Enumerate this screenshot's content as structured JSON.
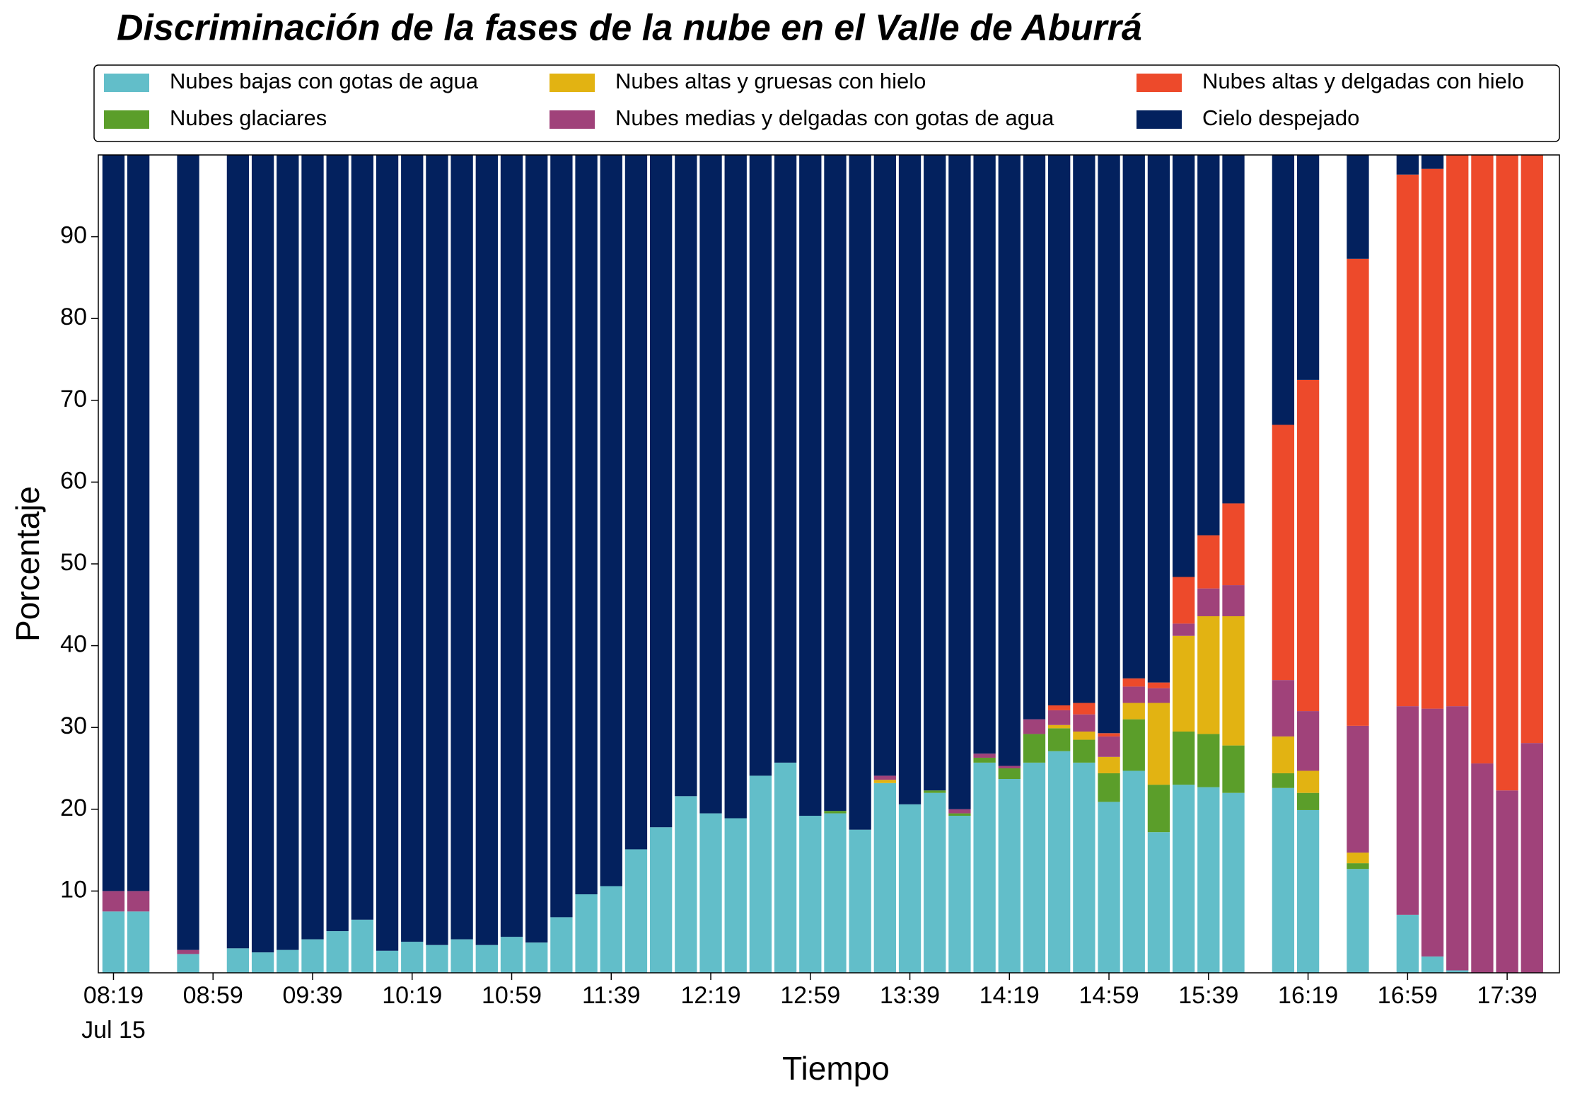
{
  "chart_data": {
    "type": "stacked_bar",
    "title": "Discriminación de la fases de la nube en el Valle de Aburrá",
    "xlabel": "Tiempo",
    "ylabel": "Porcentaje",
    "date_label": "Jul 15",
    "categories": [
      "08:19",
      null,
      null,
      null,
      "08:59",
      null,
      null,
      null,
      "09:39",
      null,
      null,
      null,
      "10:19",
      null,
      null,
      null,
      "10:59",
      null,
      null,
      null,
      "11:39",
      null,
      null,
      null,
      "12:19",
      null,
      null,
      null,
      "12:59",
      null,
      null,
      null,
      "13:39",
      null,
      null,
      null,
      "14:19",
      null,
      null,
      null,
      "14:59",
      null,
      null,
      null,
      "15:39",
      null,
      null,
      null,
      "16:19",
      null,
      null,
      null,
      "16:59",
      null,
      null,
      null,
      "17:39",
      null
    ],
    "ylim": [
      0,
      100
    ],
    "yticks": [
      10,
      20,
      30,
      40,
      50,
      60,
      70,
      80,
      90
    ],
    "legend": "top",
    "series": [
      {
        "name": "Nubes bajas con gotas de agua",
        "color": "#62bec9",
        "values": [
          7.5,
          7.5,
          null,
          2.3,
          null,
          3.0,
          2.5,
          2.8,
          4.1,
          5.1,
          6.5,
          2.7,
          3.8,
          3.4,
          4.1,
          3.4,
          4.4,
          3.7,
          6.8,
          9.6,
          10.6,
          15.1,
          17.8,
          21.6,
          19.5,
          18.9,
          24.1,
          25.7,
          19.2,
          19.5,
          17.5,
          23.2,
          20.6,
          22.0,
          19.2,
          25.7,
          23.7,
          25.7,
          27.1,
          25.7,
          20.9,
          24.7,
          17.2,
          23.0,
          22.7,
          22.0,
          null,
          22.6,
          19.9,
          null,
          12.7,
          null,
          7.1,
          2.0,
          0.3,
          0,
          0,
          0
        ]
      },
      {
        "name": "Nubes glaciares",
        "color": "#5b9e2a",
        "values": [
          0,
          0,
          null,
          0,
          null,
          0,
          0,
          0,
          0,
          0,
          0,
          0,
          0,
          0,
          0,
          0,
          0,
          0,
          0,
          0,
          0,
          0,
          0,
          0,
          0,
          0,
          0,
          0,
          0,
          0.3,
          0,
          0,
          0,
          0.3,
          0.3,
          0.6,
          1.3,
          3.5,
          2.8,
          2.8,
          3.5,
          6.3,
          5.8,
          6.5,
          6.5,
          5.8,
          null,
          1.8,
          2.1,
          null,
          0.7,
          null,
          0,
          0,
          0,
          0,
          0,
          0
        ]
      },
      {
        "name": "Nubes altas y gruesas con hielo",
        "color": "#e2b312",
        "values": [
          0,
          0,
          null,
          0,
          null,
          0,
          0,
          0,
          0,
          0,
          0,
          0,
          0,
          0,
          0,
          0,
          0,
          0,
          0,
          0,
          0,
          0,
          0,
          0,
          0,
          0,
          0,
          0,
          0,
          0,
          0,
          0.4,
          0,
          0,
          0,
          0,
          0,
          0,
          0.4,
          1.0,
          2.0,
          2.0,
          10.0,
          11.7,
          14.4,
          15.8,
          null,
          4.5,
          2.7,
          null,
          1.3,
          null,
          0,
          0,
          0,
          0,
          0,
          0
        ]
      },
      {
        "name": "Nubes medias y delgadas con gotas de agua",
        "color": "#a0427a",
        "values": [
          2.5,
          2.5,
          null,
          0.5,
          null,
          0,
          0,
          0,
          0,
          0,
          0,
          0,
          0,
          0,
          0,
          0,
          0,
          0,
          0,
          0,
          0,
          0,
          0,
          0,
          0,
          0,
          0,
          0,
          0,
          0,
          0,
          0.5,
          0,
          0,
          0.5,
          0.5,
          0.3,
          1.8,
          1.8,
          2.1,
          2.5,
          2.0,
          1.8,
          1.5,
          3.4,
          3.8,
          null,
          6.9,
          7.3,
          null,
          15.5,
          null,
          25.5,
          30.3,
          32.3,
          25.6,
          22.3,
          28.1
        ]
      },
      {
        "name": "Nubes altas y delgadas con hielo",
        "color": "#ed4a2b",
        "values": [
          0,
          0,
          null,
          0,
          null,
          0,
          0,
          0,
          0,
          0,
          0,
          0,
          0,
          0,
          0,
          0,
          0,
          0,
          0,
          0,
          0,
          0,
          0,
          0,
          0,
          0,
          0,
          0,
          0,
          0,
          0,
          0,
          0,
          0,
          0,
          0,
          0,
          0,
          0.6,
          1.4,
          0.4,
          1.0,
          0.7,
          5.7,
          6.5,
          10.0,
          null,
          31.2,
          40.5,
          null,
          57.1,
          null,
          65.0,
          66.0,
          67.4,
          74.4,
          77.7,
          71.9
        ]
      },
      {
        "name": "Cielo despejado",
        "color": "#03215e",
        "values": [
          90,
          90,
          null,
          97.2,
          null,
          97.0,
          97.5,
          97.2,
          95.9,
          94.9,
          93.5,
          97.3,
          96.2,
          96.6,
          95.9,
          96.6,
          95.6,
          96.3,
          93.2,
          90.4,
          89.4,
          84.9,
          82.2,
          78.4,
          80.5,
          81.1,
          75.9,
          74.3,
          80.8,
          80.2,
          82.5,
          75.9,
          79.4,
          77.7,
          80.0,
          73.2,
          74.7,
          69.0,
          67.3,
          67.0,
          70.7,
          64.0,
          64.5,
          51.6,
          46.5,
          42.6,
          null,
          33.0,
          27.5,
          null,
          12.7,
          null,
          2.4,
          1.7,
          0,
          0,
          0,
          0
        ]
      }
    ]
  }
}
